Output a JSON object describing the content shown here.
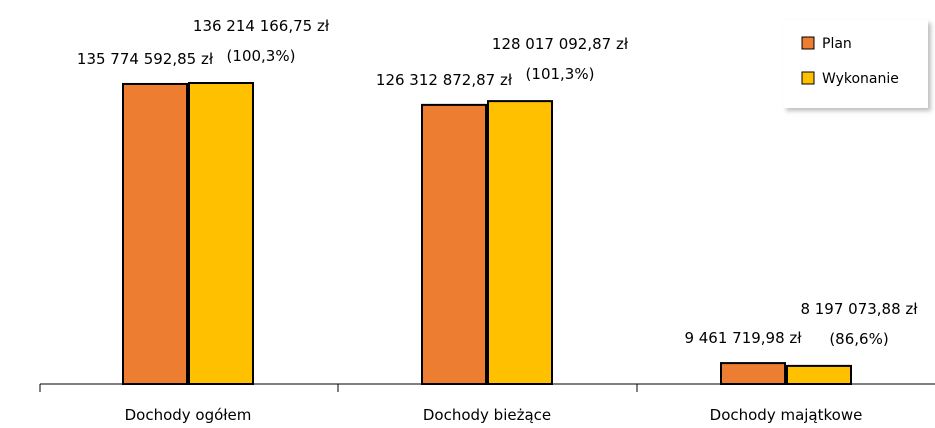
{
  "chart_data": {
    "type": "bar",
    "categories": [
      "Dochody ogółem",
      "Dochody bieżące",
      "Dochody majątkowe"
    ],
    "series": [
      {
        "name": "Plan",
        "color": "#ED7D31",
        "values": [
          135774592.85,
          126312872.87,
          9461719.98
        ],
        "labels": [
          "135 774 592,85 zł",
          "126 312 872,87 zł",
          "9 461 719,98 zł"
        ]
      },
      {
        "name": "Wykonanie",
        "color": "#FFC000",
        "values": [
          136214166.75,
          128017092.87,
          8197073.88
        ],
        "labels": [
          "136 214 166,75 zł",
          "128 017 092,87 zł",
          "8 197 073,88 zł"
        ],
        "percent_labels": [
          "(100,3%)",
          "(101,3%)",
          "(86,6%)"
        ]
      }
    ],
    "ylim": [
      0,
      140000000
    ],
    "grid": false,
    "legend_position": "top-right"
  }
}
